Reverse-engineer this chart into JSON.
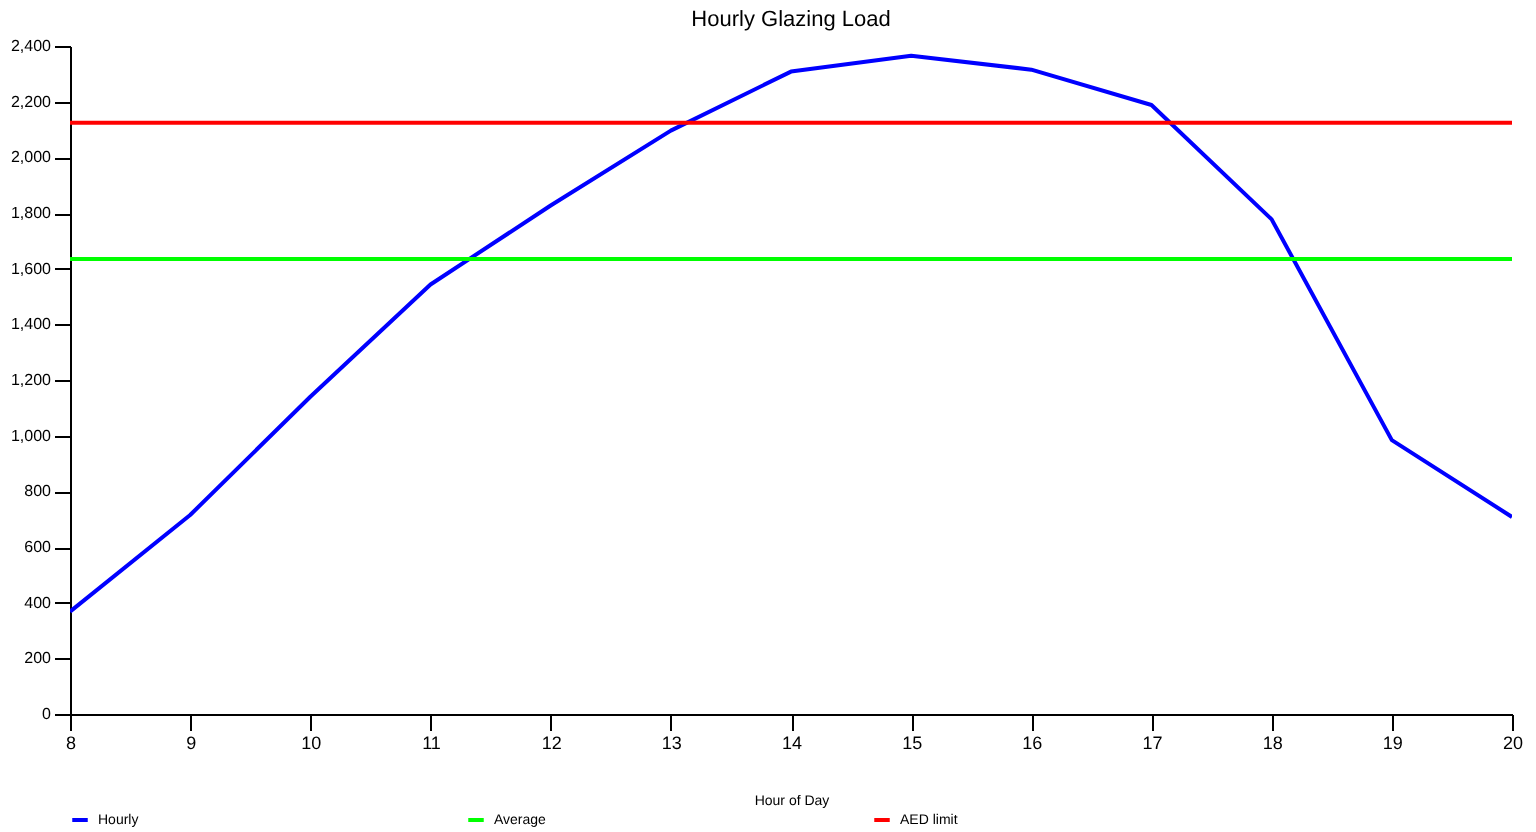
{
  "chart_data": {
    "type": "line",
    "title": "Hourly Glazing Load",
    "xlabel": "Hour of Day",
    "x": [
      8,
      9,
      10,
      11,
      12,
      13,
      14,
      15,
      16,
      17,
      18,
      19,
      20
    ],
    "series": [
      {
        "name": "Hourly",
        "color": "#0000ff",
        "values": [
          368,
          715,
          1140,
          1543,
          1827,
          2096,
          2308,
          2365,
          2315,
          2188,
          1777,
          984,
          708
        ]
      }
    ],
    "ref_lines": [
      {
        "axis": "y",
        "value": 1635,
        "label": "Average",
        "color": "#00ff00"
      },
      {
        "axis": "y",
        "value": 2124,
        "label": "AED limit",
        "color": "#ff0000"
      }
    ],
    "xlim": [
      8,
      20
    ],
    "xticks": [
      8,
      9,
      10,
      11,
      12,
      13,
      14,
      15,
      16,
      17,
      18,
      19,
      20
    ],
    "ylim": [
      0,
      2400
    ],
    "yticks": [
      0,
      200,
      400,
      600,
      800,
      {
        "value": 1000,
        "label": "1,000"
      },
      {
        "value": 1200,
        "label": "1,200"
      },
      {
        "value": 1400,
        "label": "1,400"
      },
      {
        "value": 1600,
        "label": "1,600"
      },
      {
        "value": 1800,
        "label": "1,800"
      },
      {
        "value": 2000,
        "label": "2,000"
      },
      {
        "value": 2200,
        "label": "2,200"
      },
      {
        "value": 2400,
        "label": "2,400"
      }
    ],
    "grid": false,
    "legend": "bottom",
    "marker": "none",
    "line_style": "solid"
  }
}
